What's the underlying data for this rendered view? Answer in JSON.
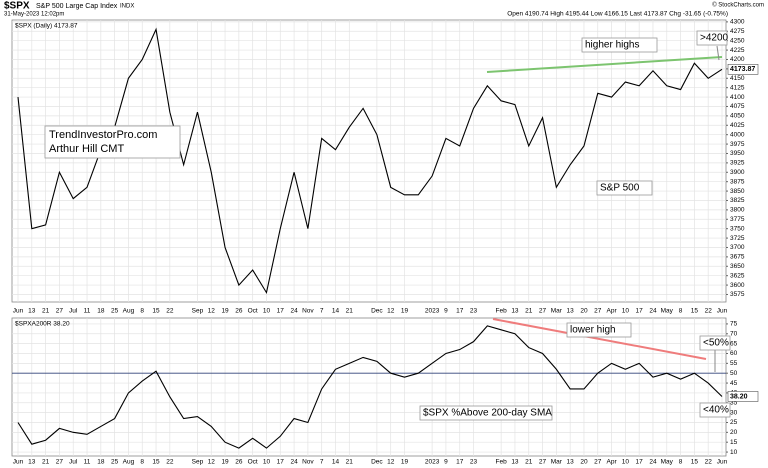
{
  "header": {
    "symbol": "$SPX",
    "name": "S&P 500 Large Cap Index",
    "exchange": "INDX",
    "date": "31-May-2023 12:02pm",
    "quote": "Open 4190.74  High 4195.44  Low 4166.15  Last 4173.87  Chg -31.65 (-0.75%)",
    "credit": "© StockCharts.com"
  },
  "chart_data": [
    {
      "type": "line",
      "categories": [
        "Jun",
        "13",
        "21",
        "27",
        "Jul",
        "11",
        "18",
        "25",
        "Aug",
        "8",
        "15",
        "22",
        null,
        "Sep",
        "12",
        "19",
        "26",
        "Oct",
        "10",
        "17",
        "24",
        "Nov",
        "7",
        "14",
        "21",
        null,
        "Dec",
        "12",
        "19",
        null,
        "2023",
        "9",
        "17",
        "23",
        null,
        "Feb",
        "13",
        "21",
        "27",
        "Mar",
        "13",
        "20",
        "27",
        "Apr",
        "10",
        "17",
        "24",
        "May",
        "8",
        "15",
        "22",
        "Jun"
      ],
      "series": [
        {
          "name": "$SPX (Daily) 4173.87",
          "color": "#000000",
          "values": [
            4100,
            3750,
            3760,
            3900,
            3830,
            3860,
            3960,
            4020,
            4150,
            4200,
            4280,
            4060,
            3920,
            4060,
            3900,
            3700,
            3600,
            3640,
            3580,
            3750,
            3900,
            3750,
            3990,
            3960,
            4020,
            4070,
            4000,
            3860,
            3840,
            3840,
            3890,
            3990,
            3970,
            4070,
            4130,
            4090,
            4080,
            3970,
            4045,
            3860,
            3920,
            3970,
            4110,
            4100,
            4140,
            4130,
            4170,
            4130,
            4120,
            4190,
            4150,
            4173.87
          ],
          "value_labels_last": "4173.87"
        }
      ],
      "ylim": [
        3555,
        4305
      ],
      "yticks": [
        3575,
        3600,
        3625,
        3650,
        3675,
        3700,
        3725,
        3750,
        3775,
        3800,
        3825,
        3850,
        3875,
        3900,
        3925,
        3950,
        3975,
        4000,
        4025,
        4050,
        4075,
        4100,
        4125,
        4150,
        4175,
        4200,
        4225,
        4250,
        4275,
        4300
      ],
      "grid": true,
      "annotations": [
        "higher highs",
        ">4200",
        "S&P 500",
        "TrendInvestorPro.com",
        "Arthur Hill CMT"
      ]
    },
    {
      "type": "line",
      "categories": [
        "Jun",
        "13",
        "21",
        "27",
        "Jul",
        "11",
        "18",
        "25",
        "Aug",
        "8",
        "15",
        "22",
        null,
        "Sep",
        "12",
        "19",
        "26",
        "Oct",
        "10",
        "17",
        "24",
        "Nov",
        "7",
        "14",
        "21",
        null,
        "Dec",
        "12",
        "19",
        null,
        "2023",
        "9",
        "17",
        "23",
        null,
        "Feb",
        "13",
        "21",
        "27",
        "Mar",
        "13",
        "20",
        "27",
        "Apr",
        "10",
        "17",
        "24",
        "May",
        "8",
        "15",
        "22",
        "Jun"
      ],
      "series": [
        {
          "name": "$SPXA200R 38.20",
          "color": "#000000",
          "values": [
            25,
            14,
            16,
            22,
            20,
            19,
            23,
            27,
            40,
            46,
            51,
            38,
            27,
            28,
            23,
            15,
            12,
            17,
            12,
            18,
            27,
            25,
            42,
            52,
            55,
            58,
            56,
            50,
            48,
            50,
            55,
            60,
            62,
            66,
            74,
            72,
            70,
            63,
            60,
            52,
            42,
            42,
            50,
            55,
            52,
            55,
            48,
            50,
            47,
            50,
            45,
            38.2
          ],
          "value_labels_last": "38.20"
        }
      ],
      "ylim": [
        8,
        78
      ],
      "yticks": [
        10,
        15,
        20,
        25,
        30,
        35,
        40,
        45,
        50,
        55,
        60,
        65,
        70,
        75
      ],
      "hline": 50,
      "grid": true,
      "annotations": [
        "lower high",
        "<50%",
        "<40%",
        "$SPX %Above 200-day SMA"
      ]
    }
  ]
}
